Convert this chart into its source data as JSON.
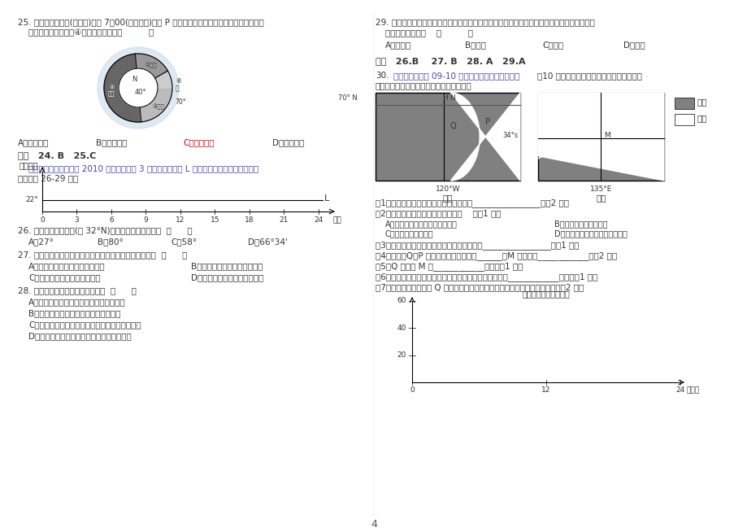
{
  "page_num": "4",
  "bg_color": "#ffffff",
  "text_color": "#333333",
  "q25_line1": "25. 若该同学于某日(天气晴)早晨 7：00(北京时间)到达 P 点时看天空，太阳还未从地平线上升起，",
  "q25_line2": "请判断，此时下图中④地的气候特点是（          ）",
  "q25_options": [
    "A．高温多雨",
    "B．低温干燥",
    "C．温和多雨",
    "D．高温干燥"
  ],
  "q25_answer_idx": 2,
  "answer_24_25": "答案   24. B   25.C",
  "source_line1": "（贵州省清华实验学校 2010 届高三下学期 3 月月考）下图中 L 表示北半球某地太阳高度角，",
  "source_line2": "读图回答 26-29 题。",
  "source_color": "#4444aa",
  "yaxis_label": "太阳高度",
  "L_label": "L",
  "hour_label": "小时",
  "degree_22": "22°",
  "tick_labels": [
    "0",
    "3",
    "6",
    "9",
    "12",
    "15",
    "18",
    "21",
    "24"
  ],
  "q26": "26. 此日江苏省南通市(约 32°N)的正午太阳高度角约是  （      ）",
  "q26_opts": [
    "A．27°",
    "B．80°",
    "C．58°",
    "D．66°34'"
  ],
  "q27": "27. 若图示太阳高度角为当地一年中最大的太阳高度角，则  （      ）",
  "q27_opts": [
    "A．两极地区的极昼时间将会变短",
    "B．地球上的温带范围将会扩大",
    "C．回归线将穿过我国的海南岛",
    "D．西风带的南北宽度将会缩小"
  ],
  "q28": "28. 图示时间内相对应的地理现象是  （      ）",
  "q28_opts": [
    "A．澳大利亚混合农业区的农民正在剪羊毛",
    "B．从地中海驶往大西洋的船只逆风逆水",
    "C．非洲肯尼亚草原上的斑马正在大规模向南迁徙",
    "D．山东北丘洼的土壤盐分处于相对稳定状态"
  ],
  "q29_line1": "29. 植物有机物的积累与光照相关。夏至日，在气温和天气状况相同的情况下，下列各地积种有",
  "q29_line2": "机物积累最多的是    （          ）",
  "q29_opts": [
    "A．哈尔滨",
    "B．北京",
    "C．济南",
    "D．南京"
  ],
  "answer_26_29": "答案   26.B    27. B   28. A   29.A",
  "q30_num": "30.",
  "q30_source": "（吉林省吉林市 09-10 学年高三第一次模拟考试）",
  "q30_source_color": "#4444aa",
  "q30_intro": "（10 分）下面图甲和图乙是同一时刻地球上",
  "q30_intro2": "两区域昼夜分布情况，读图完成下列问题：",
  "fig_jia_label": "图甲",
  "fig_yi_label": "图乙",
  "lat70": "70° N",
  "lat34": "34°s",
  "lon120": "120°W",
  "lon135": "135°E",
  "legend_night": "黑夜",
  "legend_day": "白昼",
  "subq1": "（1）图示时刻，太阳直射点的地理坐标是________________。（2 分）",
  "subq2": "（2）图示季节，下列说法正确的是（    ）（1 分）",
  "subq2_A": "A．北京地区正午树木的影子最短",
  "subq2_B": "B．组约的白昼逐渐变短",
  "subq2_C": "C．巴西高原草木茂盛",
  "subq2_D": "D．珠峰雪线拔达到一年中的最高",
  "subq3": "（3）该日，正午太阳高度随纬度的变化规律是________________。（1 分）",
  "subq4": "（4）该日，Q、P 两地的夜长大小关系是______，M 地昼长为____________。（2 分）",
  "subq5": "（5）Q 地位于 M 的____________方向。（1 分）",
  "subq6": "（6）该日，游客在泰山观日出时，日出方位应位于泰山的____________方向。（1 分）",
  "subq7": "（7）在下图中画出此日 Q 地对应点的太阳高度随时间变化的情况（用折线）。（2 分）",
  "bottom_yaxis": "太阳高度（单位：度）",
  "bottom_yticks": [
    "20",
    "40",
    "60"
  ],
  "bottom_xticks": [
    "0",
    "12",
    "24"
  ],
  "bottom_xlabel": "地方时",
  "night_color": "#808080",
  "day_color": "#ffffff"
}
